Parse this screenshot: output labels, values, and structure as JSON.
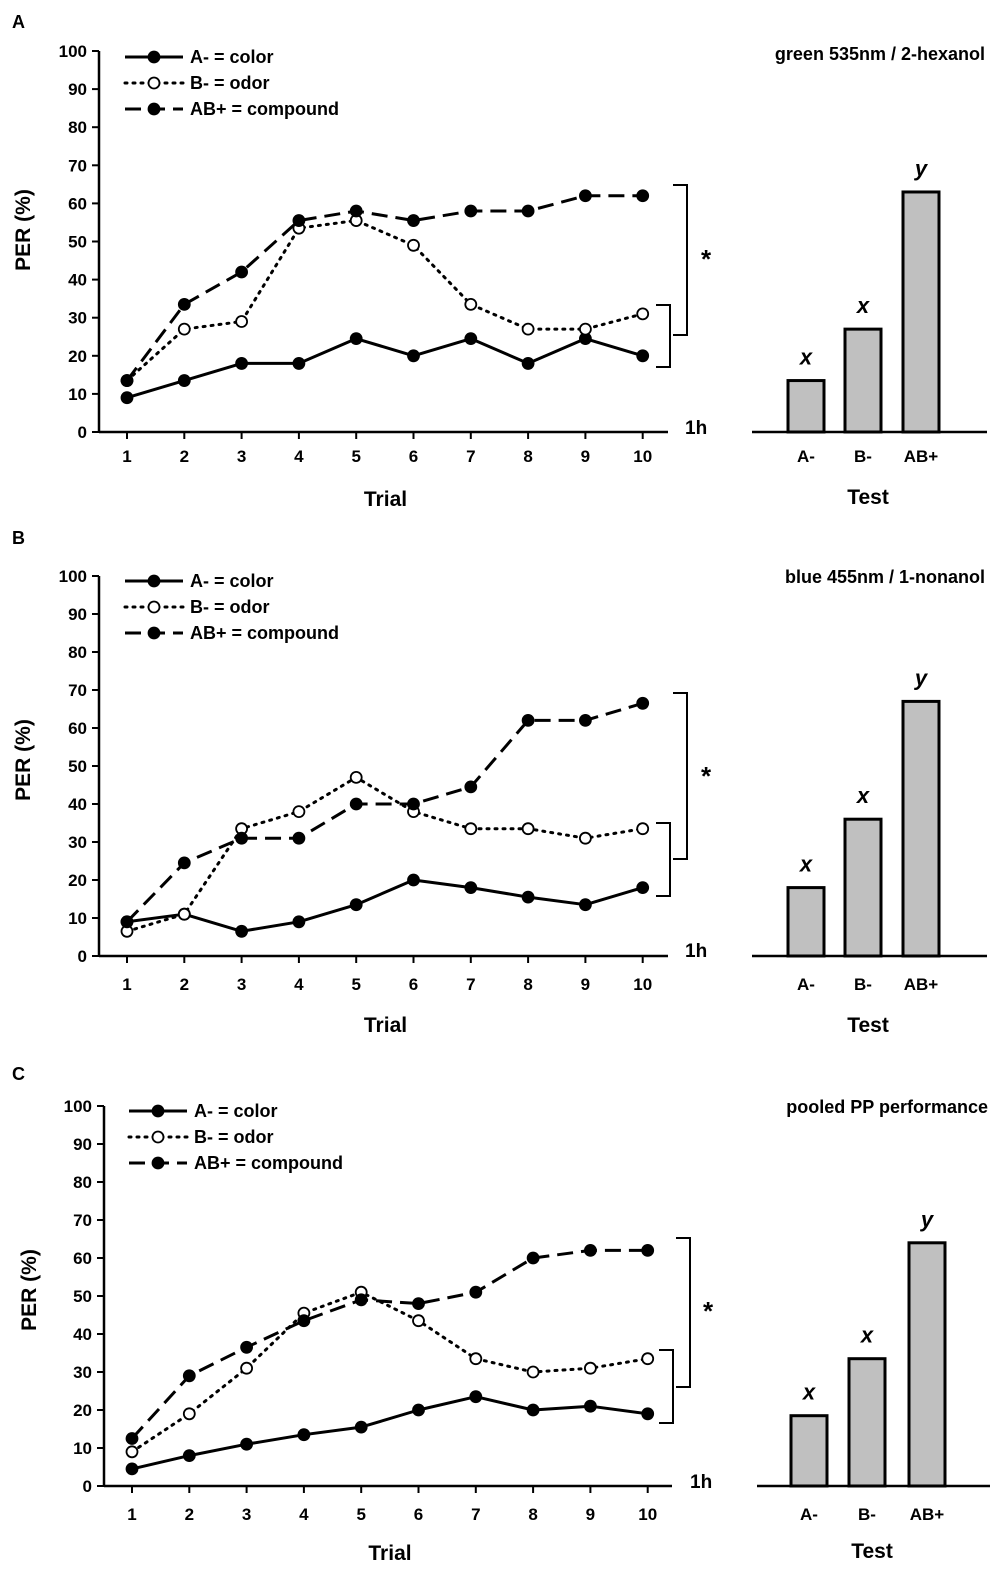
{
  "chart_data": [
    {
      "type": "line",
      "panel": "A",
      "title": "green 535nm / 2-hexanol",
      "xlabel": "Trial",
      "ylabel": "PER (%)",
      "x": [
        1,
        2,
        3,
        4,
        5,
        6,
        7,
        8,
        9,
        10
      ],
      "x_tick_labels": [
        "1",
        "2",
        "3",
        "4",
        "5",
        "6",
        "7",
        "8",
        "9",
        "10"
      ],
      "y_tick_labels": [
        "0",
        "10",
        "20",
        "30",
        "40",
        "50",
        "60",
        "70",
        "80",
        "90",
        "100"
      ],
      "ylim": [
        0,
        100
      ],
      "series": [
        {
          "name": "A- = color",
          "style": "solid",
          "marker": "filled",
          "values": [
            9,
            13.5,
            18,
            18,
            24.5,
            20,
            24.5,
            18,
            24.5,
            20
          ]
        },
        {
          "name": "B- = odor",
          "style": "dotted",
          "marker": "open",
          "values": [
            13.5,
            27,
            29,
            53.5,
            55.5,
            49,
            33.5,
            27,
            27,
            31
          ]
        },
        {
          "name": "AB+ = compound",
          "style": "dashed",
          "marker": "filled",
          "values": [
            13.5,
            33.5,
            42,
            55.5,
            58,
            55.5,
            58,
            58,
            62,
            62
          ]
        }
      ],
      "significance_marker": "*",
      "time_label": "1h",
      "test": {
        "type": "bar",
        "xlabel": "Test",
        "categories": [
          "A-",
          "B-",
          "AB+"
        ],
        "values": [
          13.5,
          27,
          63
        ],
        "letters": [
          "x",
          "x",
          "y"
        ],
        "color": "#c0c0c0"
      }
    },
    {
      "type": "line",
      "panel": "B",
      "title": "blue 455nm / 1-nonanol",
      "xlabel": "Trial",
      "ylabel": "PER (%)",
      "x": [
        1,
        2,
        3,
        4,
        5,
        6,
        7,
        8,
        9,
        10
      ],
      "x_tick_labels": [
        "1",
        "2",
        "3",
        "4",
        "5",
        "6",
        "7",
        "8",
        "9",
        "10"
      ],
      "y_tick_labels": [
        "0",
        "10",
        "20",
        "30",
        "40",
        "50",
        "60",
        "70",
        "80",
        "90",
        "100"
      ],
      "ylim": [
        0,
        100
      ],
      "series": [
        {
          "name": "A- = color",
          "style": "solid",
          "marker": "filled",
          "values": [
            9,
            11,
            6.5,
            9,
            13.5,
            20,
            18,
            15.5,
            13.5,
            18
          ]
        },
        {
          "name": "B- = odor",
          "style": "dotted",
          "marker": "open",
          "values": [
            6.5,
            11,
            33.5,
            38,
            47,
            38,
            33.5,
            33.5,
            31,
            33.5
          ]
        },
        {
          "name": "AB+ = compound",
          "style": "dashed",
          "marker": "filled",
          "values": [
            9,
            24.5,
            31,
            31,
            40,
            40,
            44.5,
            62,
            62,
            66.5
          ]
        }
      ],
      "significance_marker": "*",
      "time_label": "1h",
      "test": {
        "type": "bar",
        "xlabel": "Test",
        "categories": [
          "A-",
          "B-",
          "AB+"
        ],
        "values": [
          18,
          36,
          67
        ],
        "letters": [
          "x",
          "x",
          "y"
        ],
        "color": "#c0c0c0"
      }
    },
    {
      "type": "line",
      "panel": "C",
      "title": "pooled PP performance",
      "xlabel": "Trial",
      "ylabel": "PER (%)",
      "x": [
        1,
        2,
        3,
        4,
        5,
        6,
        7,
        8,
        9,
        10
      ],
      "x_tick_labels": [
        "1",
        "2",
        "3",
        "4",
        "5",
        "6",
        "7",
        "8",
        "9",
        "10"
      ],
      "y_tick_labels": [
        "0",
        "10",
        "20",
        "30",
        "40",
        "50",
        "60",
        "70",
        "80",
        "90",
        "100"
      ],
      "ylim": [
        0,
        100
      ],
      "series": [
        {
          "name": "A- = color",
          "style": "solid",
          "marker": "filled",
          "values": [
            4.5,
            8,
            11,
            13.5,
            15.5,
            20,
            23.5,
            20,
            21,
            19
          ]
        },
        {
          "name": "B- = odor",
          "style": "dotted",
          "marker": "open",
          "values": [
            9,
            19,
            31,
            45.5,
            51,
            43.5,
            33.5,
            30,
            31,
            33.5
          ]
        },
        {
          "name": "AB+ = compound",
          "style": "dashed",
          "marker": "filled",
          "values": [
            12.5,
            29,
            36.5,
            43.5,
            49,
            48,
            51,
            60,
            62,
            62
          ]
        }
      ],
      "significance_marker": "*",
      "time_label": "1h",
      "test": {
        "type": "bar",
        "xlabel": "Test",
        "categories": [
          "A-",
          "B-",
          "AB+"
        ],
        "values": [
          18.5,
          33.5,
          64
        ],
        "letters": [
          "x",
          "x",
          "y"
        ],
        "color": "#c0c0c0"
      }
    }
  ]
}
